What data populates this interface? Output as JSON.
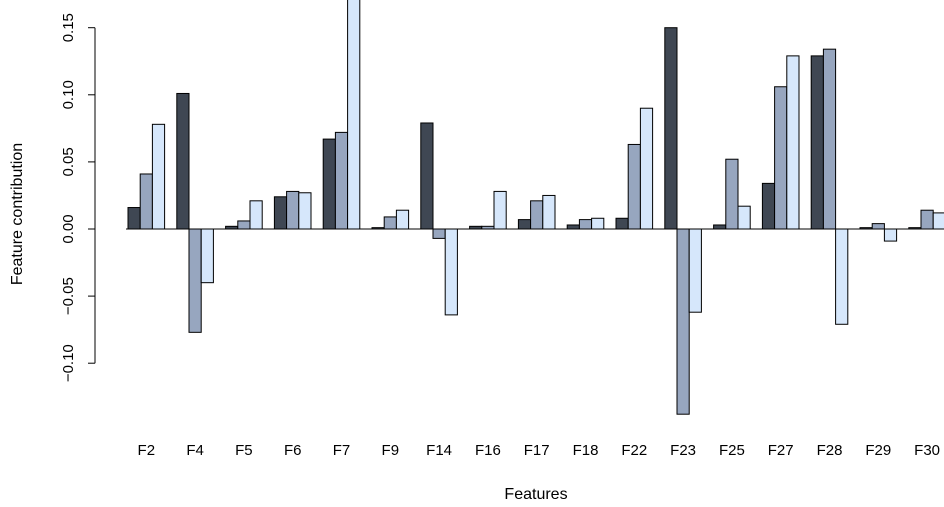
{
  "chart_data": {
    "type": "bar",
    "xlabel": "Features",
    "ylabel": "Feature contribution",
    "categories": [
      "F2",
      "F4",
      "F5",
      "F6",
      "F7",
      "F9",
      "F14",
      "F16",
      "F17",
      "F18",
      "F22",
      "F23",
      "F25",
      "F27",
      "F28",
      "F29",
      "F30"
    ],
    "series": [
      {
        "color": "#3f4753",
        "values": [
          0.016,
          0.101,
          0.002,
          0.024,
          0.067,
          0.001,
          0.079,
          0.002,
          0.007,
          0.003,
          0.008,
          0.15,
          0.003,
          0.034,
          0.129,
          0.001,
          0.001
        ]
      },
      {
        "color": "#97a6bf",
        "values": [
          0.041,
          -0.077,
          0.006,
          0.028,
          0.072,
          0.009,
          -0.007,
          0.002,
          0.021,
          0.007,
          0.063,
          -0.138,
          0.052,
          0.106,
          0.134,
          0.004,
          0.014
        ]
      },
      {
        "color": "#d6e7fb",
        "values": [
          0.078,
          -0.04,
          0.021,
          0.027,
          0.175,
          0.014,
          -0.064,
          0.028,
          0.025,
          0.008,
          0.09,
          -0.062,
          0.017,
          0.129,
          -0.071,
          -0.009,
          0.012
        ]
      }
    ],
    "yticks": [
      -0.1,
      -0.05,
      0.0,
      0.05,
      0.1,
      0.15
    ],
    "ytick_labels": [
      "−0.10",
      "−0.05",
      "0.00",
      "0.05",
      "0.10",
      "0.15"
    ],
    "ylim": [
      -0.14,
      0.175
    ],
    "grid": false,
    "legend": "none"
  }
}
